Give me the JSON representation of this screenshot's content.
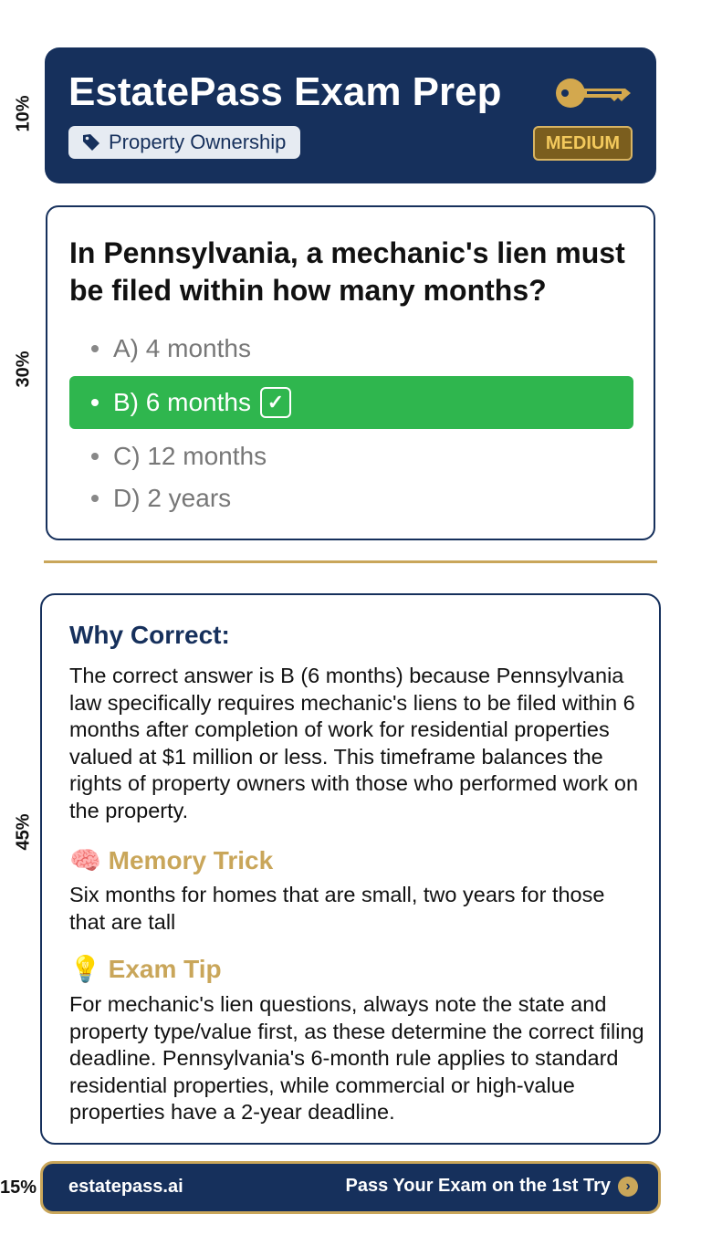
{
  "side_labels": [
    "10%",
    "30%",
    "45%",
    "15%"
  ],
  "header": {
    "title": "EstatePass Exam Prep",
    "category": "Property Ownership",
    "difficulty": "MEDIUM",
    "icons": [
      "key-icon",
      "tag-icon"
    ]
  },
  "question": {
    "text": "In Pennsylvania, a mechanic's lien must be filed within how many months?",
    "options": [
      {
        "label": "A) 4 months"
      },
      {
        "label": "B) 6 months",
        "correct": true
      },
      {
        "label": "C) 12 months"
      },
      {
        "label": "D) 2 years"
      }
    ]
  },
  "explanation": {
    "why_title": "Why Correct:",
    "why_text": "The correct answer is B (6 months) because Pennsylvania law specifically requires mechanic's liens to be filed within 6 months after completion of work for residential properties valued at $1 million or less. This timeframe balances the rights of property owners with those who performed work on the property.",
    "memory_title": "Memory Trick",
    "memory_icon": "🧠",
    "memory_text": "Six months for homes that are small, two years for those that are tall",
    "tip_title": "Exam Tip",
    "tip_icon": "💡",
    "tip_text": "For mechanic's  lien questions, always note the state and property type/value first, as these determine the correct filing deadline. Pennsylvania's 6-month rule applies to standard residential properties, while commercial or high-value properties have a 2-year deadline."
  },
  "footer": {
    "site": "estatepass.ai",
    "cta": "Pass Your Exam on the 1st Try"
  },
  "colors": {
    "navy": "#16305c",
    "gold": "#c9a65a",
    "green": "#2fb64e"
  }
}
